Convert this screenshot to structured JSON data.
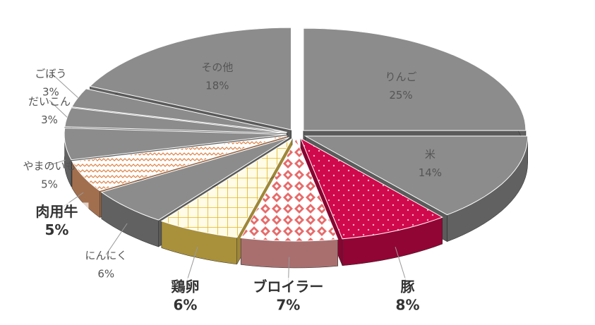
{
  "chart_data": {
    "type": "pie3d",
    "categories": [
      "りんご",
      "米",
      "豚",
      "ブロイラー",
      "鶏卵",
      "にんにく",
      "肉用牛",
      "やまのいも",
      "だいこん",
      "ごぼう",
      "その他"
    ],
    "values": [
      25,
      14,
      8,
      7,
      6,
      6,
      5,
      5,
      3,
      3,
      18
    ],
    "value_labels": [
      "25%",
      "14%",
      "8%",
      "7%",
      "6%",
      "6%",
      "5%",
      "5%",
      "3%",
      "3%",
      "18%"
    ],
    "colors": [
      "#8c8c8c",
      "#8c8c8c",
      "#d0084c",
      "#f2a0a0",
      "#f3cf55",
      "#8c8c8c",
      "#e8a070",
      "#8c8c8c",
      "#8c8c8c",
      "#8c8c8c",
      "#8c8c8c"
    ],
    "patterns": [
      null,
      null,
      "dots",
      "diamond",
      "grid",
      null,
      "zigzag",
      null,
      null,
      null,
      null
    ],
    "emphasis": [
      false,
      false,
      true,
      true,
      true,
      false,
      true,
      false,
      false,
      false,
      false
    ]
  }
}
